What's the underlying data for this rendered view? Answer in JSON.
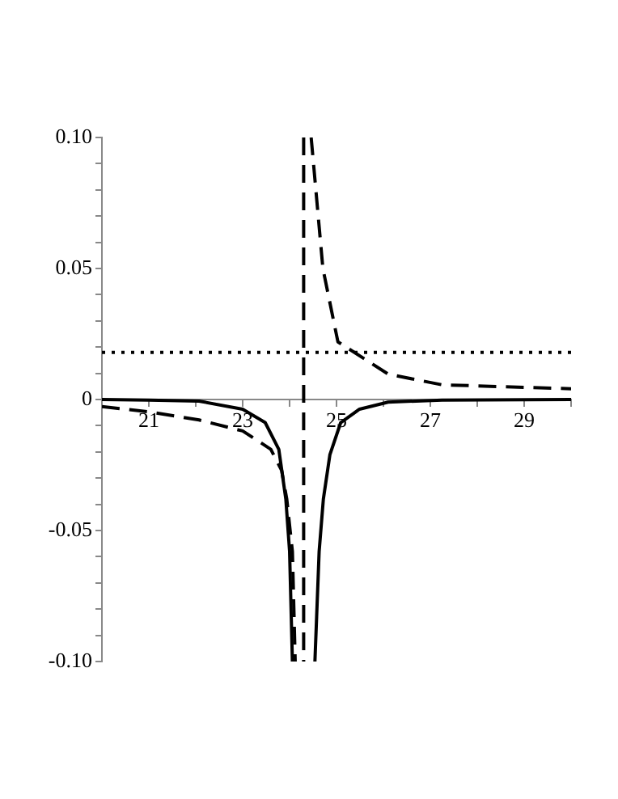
{
  "chart_data": {
    "type": "line",
    "xlim": [
      20,
      30
    ],
    "ylim": [
      -0.1,
      0.1
    ],
    "xticks": [
      {
        "value": 20,
        "label": null
      },
      21,
      {
        "value": 22,
        "label": null
      },
      23,
      {
        "value": 24,
        "label": null
      },
      25,
      {
        "value": 26,
        "label": null
      },
      27,
      {
        "value": 28,
        "label": null
      },
      29,
      {
        "value": 30,
        "label": null
      }
    ],
    "yticks": [
      {
        "value": -0.1,
        "label": "-0.10"
      },
      {
        "value": -0.09,
        "label": null
      },
      {
        "value": -0.08,
        "label": null
      },
      {
        "value": -0.07,
        "label": null
      },
      {
        "value": -0.06,
        "label": null
      },
      -0.05,
      {
        "value": -0.04,
        "label": null
      },
      {
        "value": -0.03,
        "label": null
      },
      {
        "value": -0.02,
        "label": null
      },
      {
        "value": -0.01,
        "label": null
      },
      0,
      {
        "value": 0.01,
        "label": null
      },
      {
        "value": 0.02,
        "label": null
      },
      {
        "value": 0.03,
        "label": null
      },
      {
        "value": 0.04,
        "label": null
      },
      0.05,
      {
        "value": 0.06,
        "label": null
      },
      {
        "value": 0.07,
        "label": null
      },
      {
        "value": 0.08,
        "label": null
      },
      {
        "value": 0.09,
        "label": null
      },
      {
        "value": 0.1,
        "label": "0.10"
      }
    ],
    "grid": false,
    "legend": false,
    "marker": "none",
    "series": [
      {
        "color": "#000000",
        "line_style": "solid",
        "x": [
          20,
          21,
          22.07,
          23,
          23.48,
          23.77,
          23.92,
          24,
          24.06,
          24.3,
          24.54,
          24.63,
          24.72,
          24.86,
          25.09,
          25.49,
          26.1,
          27.25,
          30
        ],
        "values": [
          0,
          -0.0002,
          -0.0006,
          -0.0037,
          -0.0088,
          -0.019,
          -0.038,
          -0.058,
          -0.1,
          null,
          -0.1,
          -0.058,
          -0.038,
          -0.021,
          -0.0088,
          -0.0037,
          -0.001,
          -0.0002,
          0
        ]
      },
      {
        "color": "#000000",
        "line_style": "dashed",
        "x": [
          20,
          21,
          22.07,
          23,
          23.6,
          23.83,
          23.94,
          24.06,
          24.12,
          24.3,
          24.46,
          24.71,
          25.03,
          26.1,
          27.25,
          30
        ],
        "values": [
          -0.0027,
          -0.0047,
          -0.0078,
          -0.012,
          -0.019,
          -0.027,
          -0.038,
          -0.058,
          -0.1,
          null,
          0.1,
          0.05,
          0.022,
          0.0097,
          0.0056,
          0.0041
        ]
      }
    ],
    "ref_lines": [
      {
        "axis": "x",
        "value": 24.3,
        "line_style": "dashed",
        "color": "#000000"
      },
      {
        "axis": "y",
        "value": 0.018,
        "line_style": "dotted",
        "color": "#000000"
      }
    ]
  }
}
